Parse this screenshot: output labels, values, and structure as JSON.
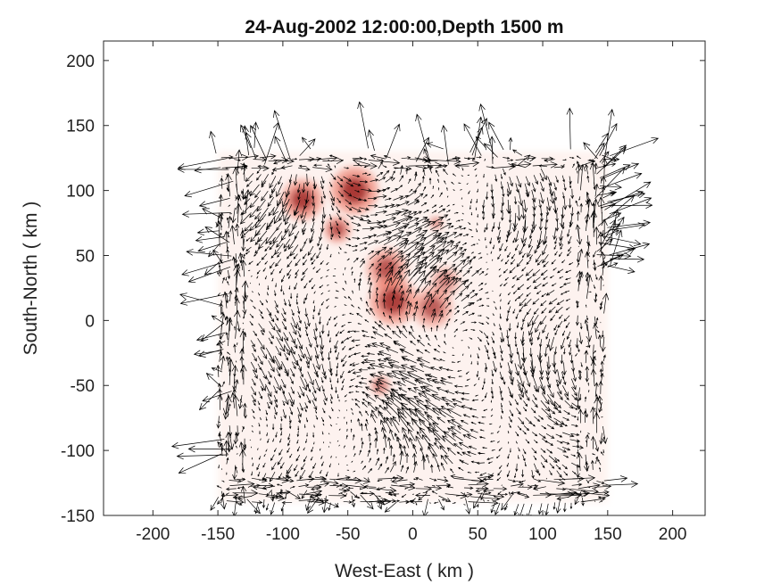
{
  "chart_data": {
    "type": "quiver",
    "title": "24-Aug-2002 12:00:00,Depth 1500 m",
    "xlabel": "West-East ( km )",
    "ylabel": "South-North ( km )",
    "xlim": [
      -238,
      225
    ],
    "ylim": [
      -150,
      215
    ],
    "xticks": [
      -200,
      -150,
      -100,
      -50,
      0,
      50,
      100,
      150,
      200
    ],
    "yticks": [
      -150,
      -100,
      -50,
      0,
      50,
      100,
      150,
      200
    ],
    "grid": false,
    "colors": {
      "arrows": "#000000",
      "field_light": "#fde8e2",
      "field_mid": "#e8553e",
      "field_dark": "#8c1010"
    },
    "field_spots": [
      {
        "x": -85,
        "y": 93,
        "r": 12,
        "intensity": 0.9
      },
      {
        "x": -45,
        "y": 100,
        "r": 14,
        "intensity": 0.95
      },
      {
        "x": -58,
        "y": 70,
        "r": 8,
        "intensity": 0.8
      },
      {
        "x": -20,
        "y": 40,
        "r": 12,
        "intensity": 0.75
      },
      {
        "x": -15,
        "y": 15,
        "r": 14,
        "intensity": 0.9
      },
      {
        "x": 15,
        "y": 10,
        "r": 12,
        "intensity": 0.7
      },
      {
        "x": 25,
        "y": 30,
        "r": 9,
        "intensity": 0.5
      },
      {
        "x": -25,
        "y": -50,
        "r": 6,
        "intensity": 0.6
      },
      {
        "x": 18,
        "y": 75,
        "r": 4,
        "intensity": 0.6
      }
    ],
    "field_region": {
      "x": [
        -150,
        150
      ],
      "y": [
        -140,
        130
      ]
    }
  }
}
